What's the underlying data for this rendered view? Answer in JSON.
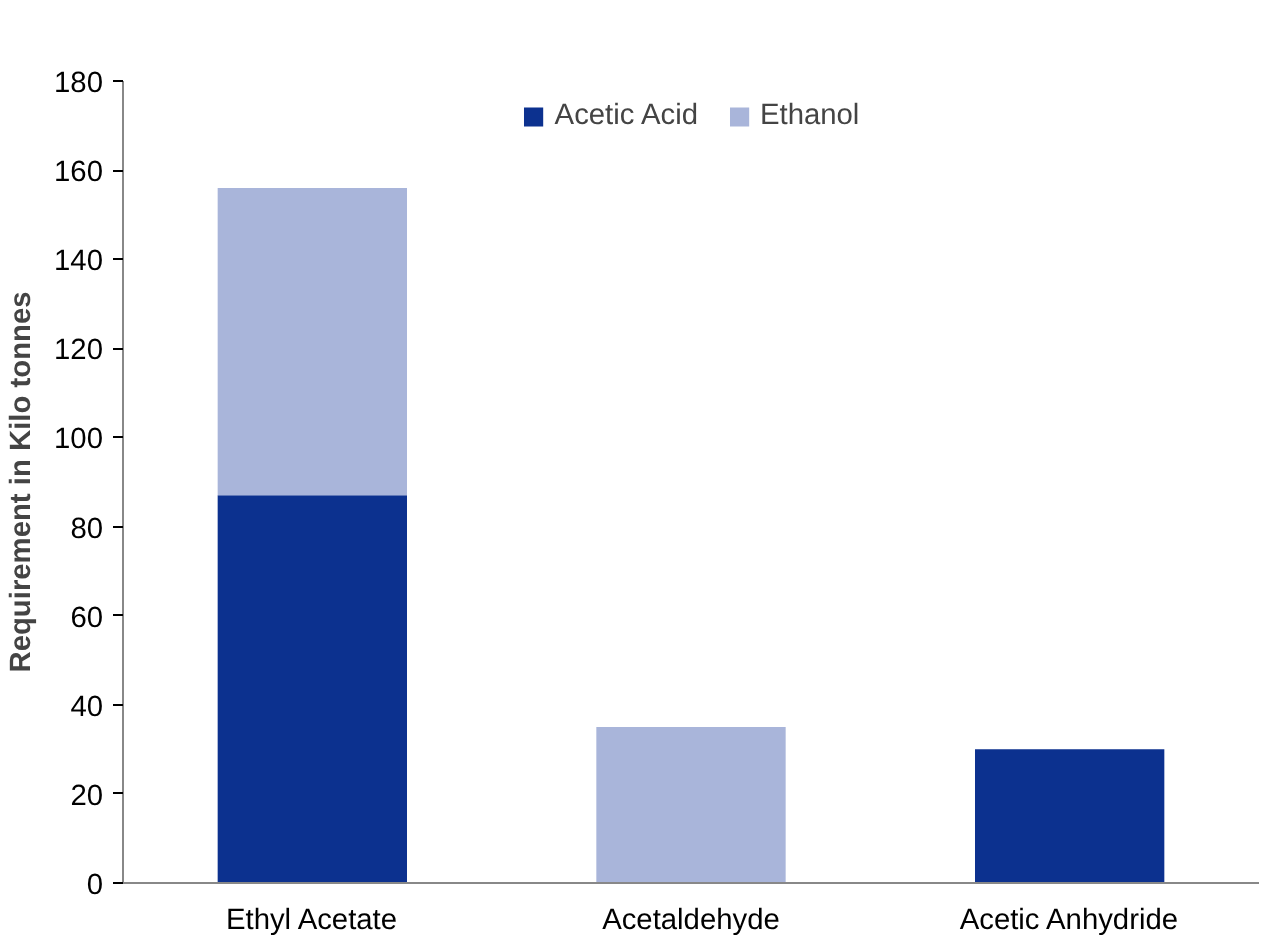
{
  "chart_data": {
    "type": "bar",
    "stacked": true,
    "ylabel": "Requirement in Kilo tonnes",
    "categories": [
      "Ethyl Acetate",
      "Acetaldehyde",
      "Acetic Anhydride"
    ],
    "series": [
      {
        "name": "Acetic Acid",
        "color": "#0c318f",
        "values": [
          87,
          null,
          30
        ]
      },
      {
        "name": "Ethanol",
        "color": "#a9b5da",
        "values": [
          69,
          35,
          null
        ]
      }
    ],
    "ylim": [
      0,
      180
    ],
    "yticks": [
      0,
      20,
      40,
      60,
      80,
      100,
      120,
      140,
      160,
      180
    ],
    "grid": false,
    "legend": "top"
  }
}
